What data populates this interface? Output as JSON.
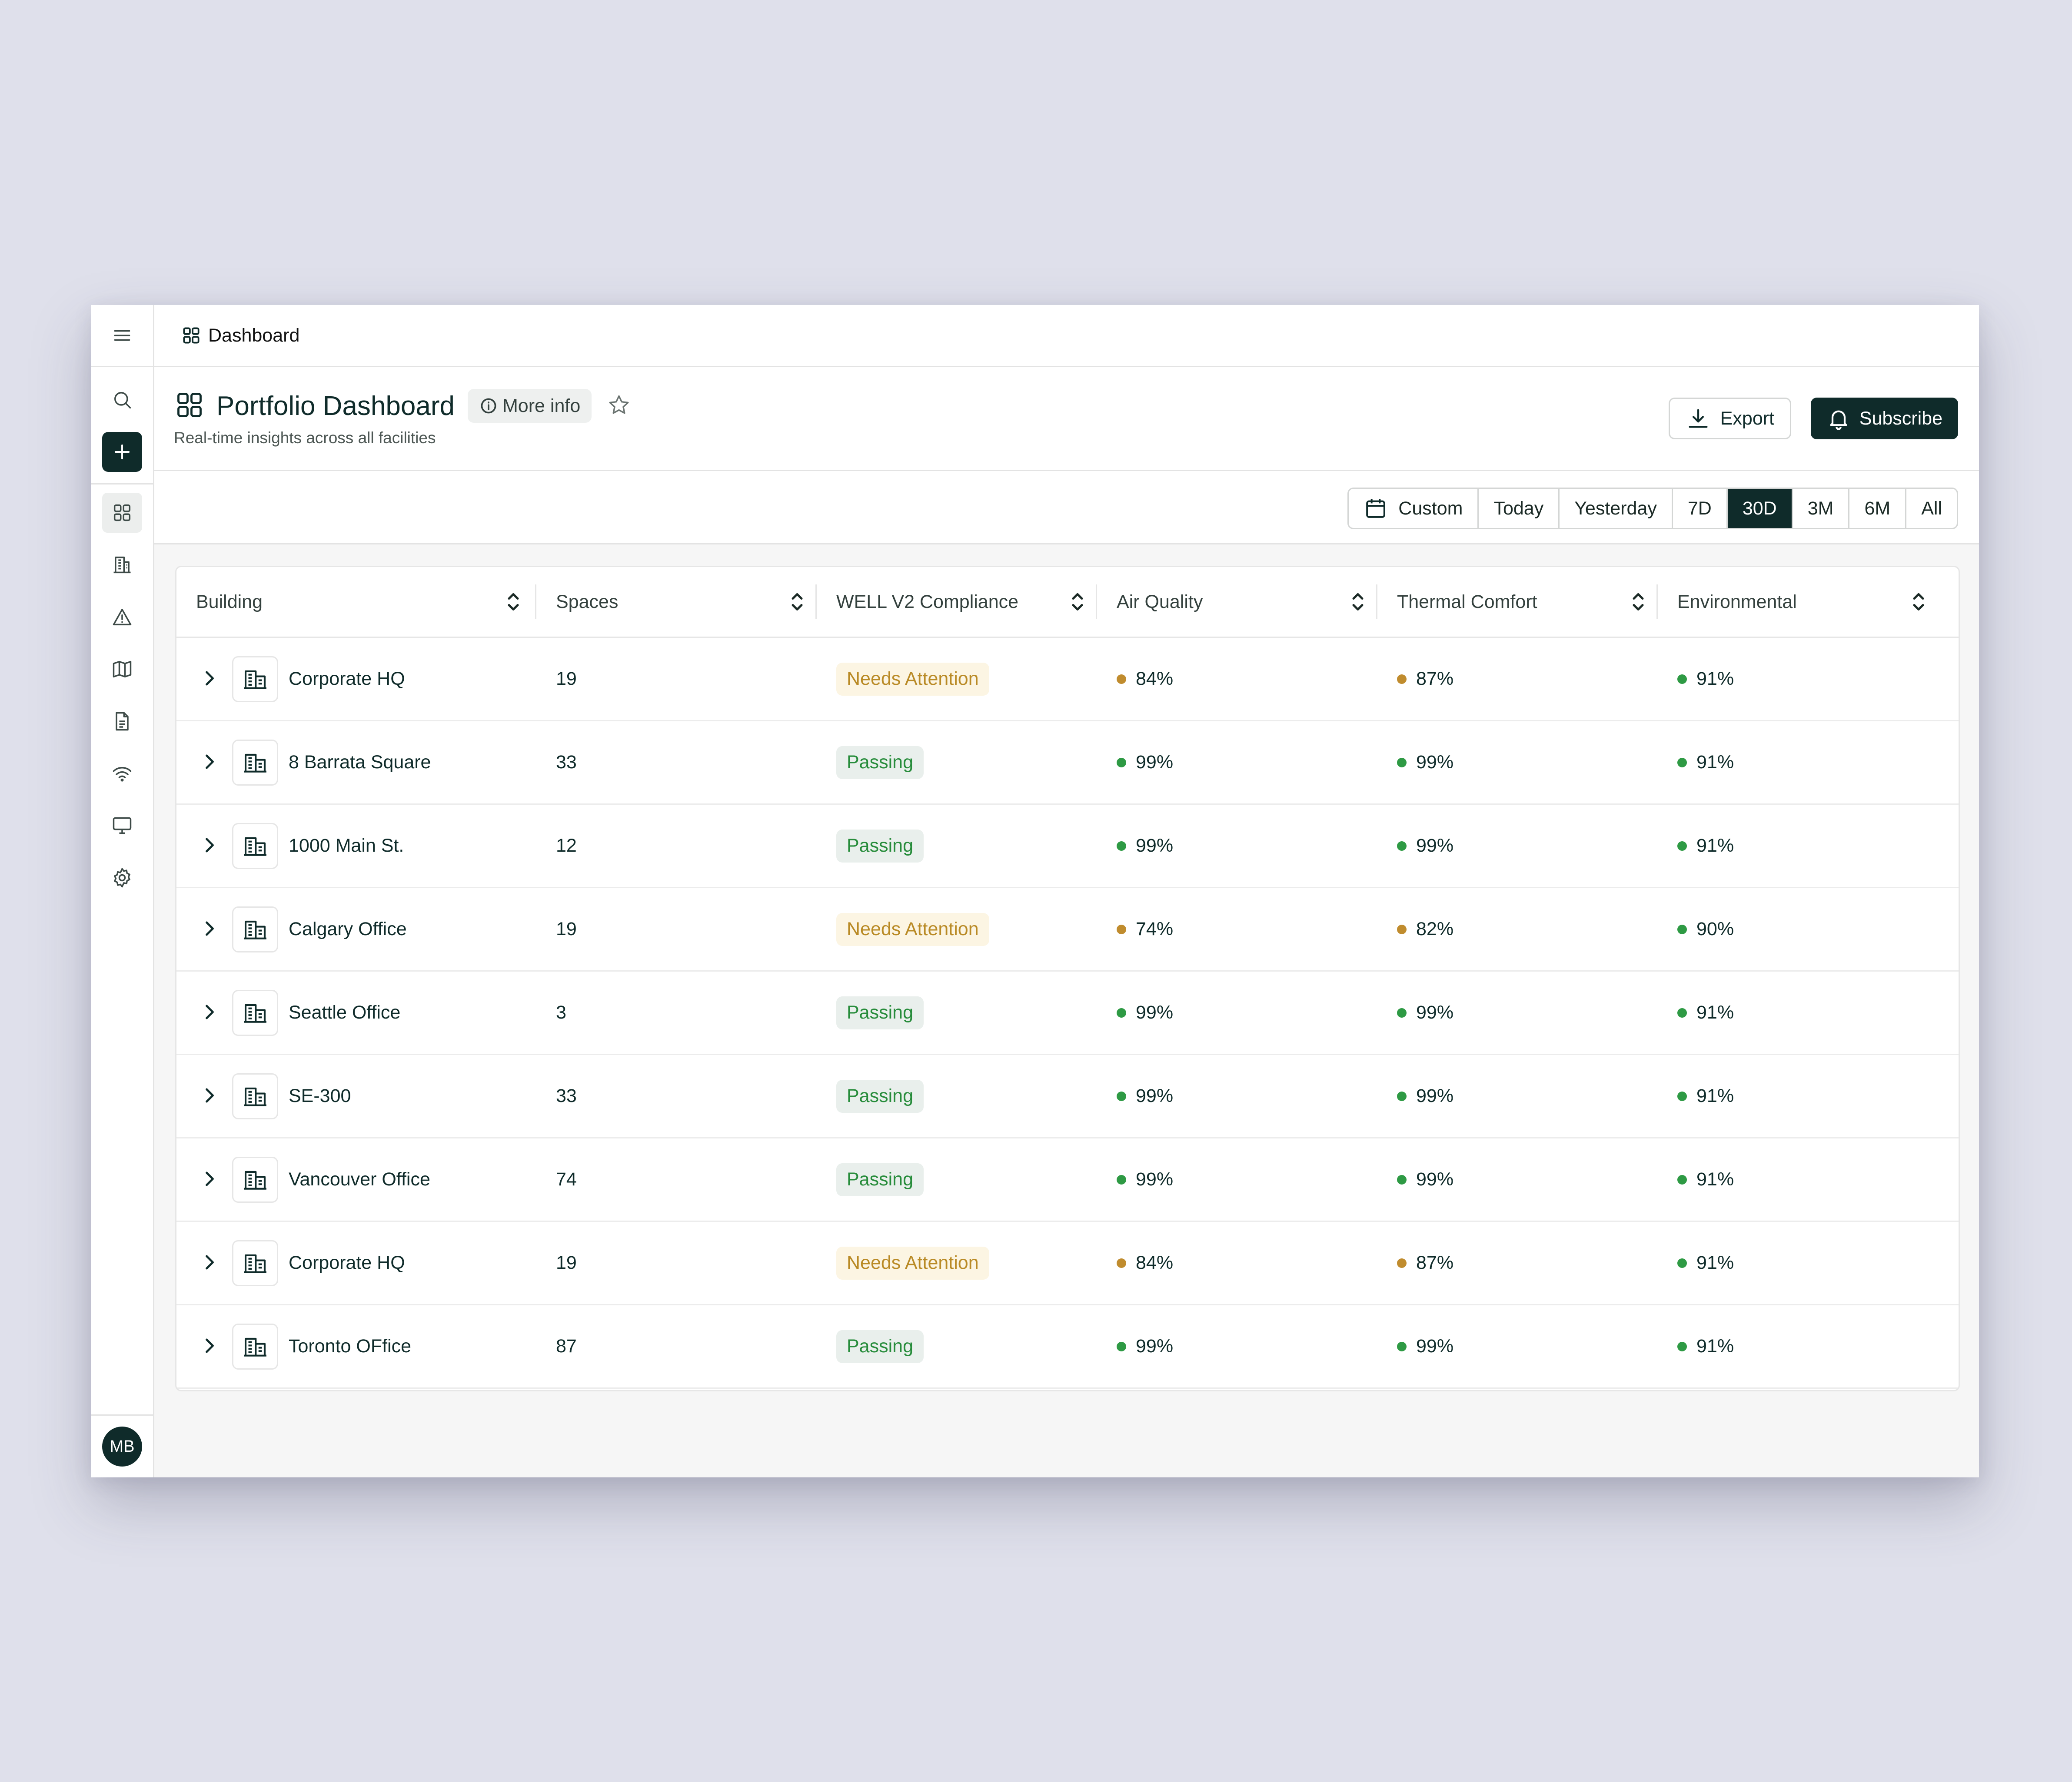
{
  "colors": {
    "pass": "#2e9a44",
    "warn": "#c08c2e",
    "brand": "#0f2b2a"
  },
  "breadcrumb": {
    "label": "Dashboard"
  },
  "header": {
    "title": "Portfolio Dashboard",
    "more_info": "More info",
    "subtitle": "Real-time insights across all facilities",
    "export_label": "Export",
    "subscribe_label": "Subscribe"
  },
  "range": {
    "options": [
      "Custom",
      "Today",
      "Yesterday",
      "7D",
      "30D",
      "3M",
      "6M",
      "All"
    ],
    "selected": "30D"
  },
  "user": {
    "initials": "MB"
  },
  "table": {
    "columns": [
      "Building",
      "Spaces",
      "WELL V2 Compliance",
      "Air Quality",
      "Thermal Comfort",
      "Environmental"
    ],
    "rows": [
      {
        "building": "Corporate HQ",
        "spaces": "19",
        "status": "Needs Attention",
        "status_type": "warn",
        "air": "84%",
        "air_s": "warn",
        "thermal": "87%",
        "thermal_s": "warn",
        "env": "91%",
        "env_s": "pass"
      },
      {
        "building": "8 Barrata Square",
        "spaces": "33",
        "status": "Passing",
        "status_type": "pass",
        "air": "99%",
        "air_s": "pass",
        "thermal": "99%",
        "thermal_s": "pass",
        "env": "91%",
        "env_s": "pass"
      },
      {
        "building": "1000 Main St.",
        "spaces": "12",
        "status": "Passing",
        "status_type": "pass",
        "air": "99%",
        "air_s": "pass",
        "thermal": "99%",
        "thermal_s": "pass",
        "env": "91%",
        "env_s": "pass"
      },
      {
        "building": "Calgary Office",
        "spaces": "19",
        "status": "Needs Attention",
        "status_type": "warn",
        "air": "74%",
        "air_s": "warn",
        "thermal": "82%",
        "thermal_s": "warn",
        "env": "90%",
        "env_s": "pass"
      },
      {
        "building": "Seattle Office",
        "spaces": "3",
        "status": "Passing",
        "status_type": "pass",
        "air": "99%",
        "air_s": "pass",
        "thermal": "99%",
        "thermal_s": "pass",
        "env": "91%",
        "env_s": "pass"
      },
      {
        "building": "SE-300",
        "spaces": "33",
        "status": "Passing",
        "status_type": "pass",
        "air": "99%",
        "air_s": "pass",
        "thermal": "99%",
        "thermal_s": "pass",
        "env": "91%",
        "env_s": "pass"
      },
      {
        "building": "Vancouver Office",
        "spaces": "74",
        "status": "Passing",
        "status_type": "pass",
        "air": "99%",
        "air_s": "pass",
        "thermal": "99%",
        "thermal_s": "pass",
        "env": "91%",
        "env_s": "pass"
      },
      {
        "building": "Corporate HQ",
        "spaces": "19",
        "status": "Needs Attention",
        "status_type": "warn",
        "air": "84%",
        "air_s": "warn",
        "thermal": "87%",
        "thermal_s": "warn",
        "env": "91%",
        "env_s": "pass"
      },
      {
        "building": "Toronto OFfice",
        "spaces": "87",
        "status": "Passing",
        "status_type": "pass",
        "air": "99%",
        "air_s": "pass",
        "thermal": "99%",
        "thermal_s": "pass",
        "env": "91%",
        "env_s": "pass"
      }
    ]
  }
}
